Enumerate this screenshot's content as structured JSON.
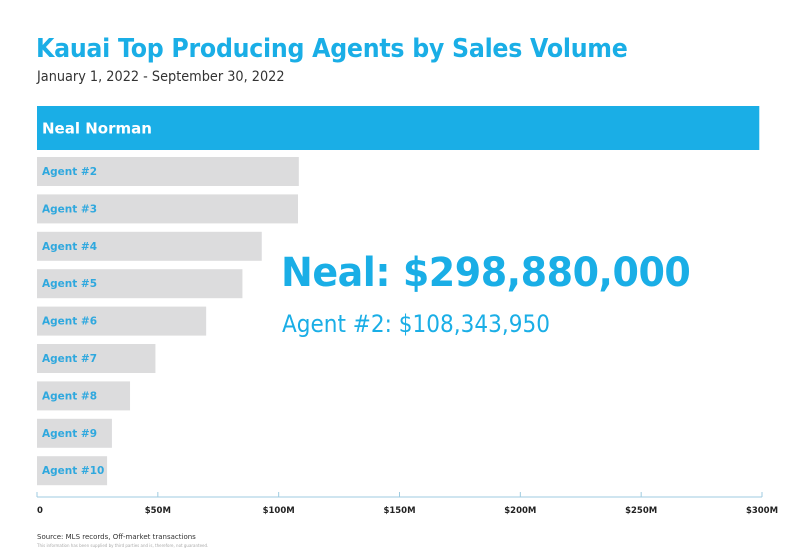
{
  "colors": {
    "accent": "#1aaee6",
    "bar_gray": "#dcdcdd",
    "axis": "#9fcbe0",
    "highlight_label": "#ffffff",
    "gray_label": "#2fa8de"
  },
  "header": {
    "title": "Kauai Top Producing Agents by Sales Volume",
    "subtitle": "January 1, 2022 - September 30, 2022"
  },
  "callout": {
    "main": "Neal: $298,880,000",
    "sub": "Agent #2: $108,343,950"
  },
  "footer": {
    "source": "Source: MLS records, Off-market transactions",
    "disclaimer": "This information has been supplied by third parties and is, therefore, not guaranteed."
  },
  "chart_data": {
    "type": "bar",
    "orientation": "horizontal",
    "title": "Kauai Top Producing Agents by Sales Volume",
    "subtitle": "January 1, 2022 - September 30, 2022",
    "xlabel": "",
    "ylabel": "",
    "units": "USD (millions)",
    "categories": [
      "Neal Norman",
      "Agent #2",
      "Agent #3",
      "Agent #4",
      "Agent #5",
      "Agent #6",
      "Agent #7",
      "Agent #8",
      "Agent #9",
      "Agent #10"
    ],
    "values": [
      298.88,
      108.34,
      108,
      93,
      85,
      70,
      49,
      38.5,
      31,
      29
    ],
    "highlight_index": 0,
    "xlim": [
      0,
      300
    ],
    "xticks": [
      0,
      50,
      100,
      150,
      200,
      250,
      300
    ],
    "xtick_labels": [
      "0",
      "$50M",
      "$100M",
      "$150M",
      "$200M",
      "$250M",
      "$300M"
    ],
    "grid": false,
    "legend": "none",
    "annotations": [
      "Neal: $298,880,000",
      "Agent #2: $108,343,950"
    ]
  }
}
